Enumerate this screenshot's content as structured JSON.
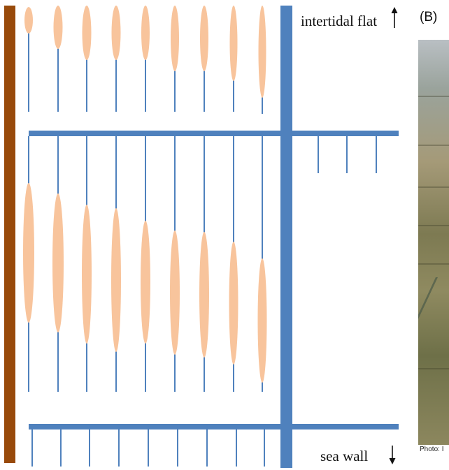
{
  "labels": {
    "top": "intertidal flat",
    "bottom": "sea wall",
    "panel": "(B)",
    "photo_credit": "Photo: I"
  },
  "colors": {
    "wall": "#984a0b",
    "channel": "#4f81bd",
    "vegetation": "#f8c49c",
    "text": "#111111"
  },
  "icons": {
    "up_arrow": "arrow-up-icon",
    "down_arrow": "arrow-down-icon"
  }
}
